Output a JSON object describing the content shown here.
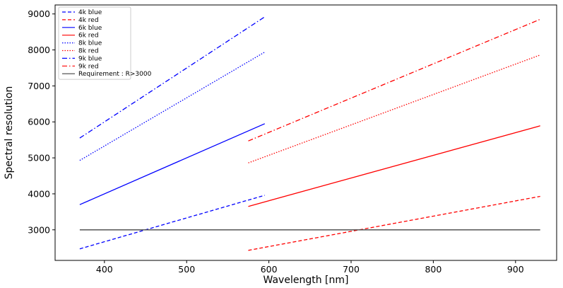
{
  "chart_data": {
    "type": "line",
    "title": "",
    "xlabel": "Wavelength [nm]",
    "ylabel": "Spectral resolution",
    "xlim": [
      340,
      950
    ],
    "ylim": [
      2150,
      9250
    ],
    "xticks": [
      400,
      500,
      600,
      700,
      800,
      900
    ],
    "yticks": [
      3000,
      4000,
      5000,
      6000,
      7000,
      8000,
      9000
    ],
    "grid": false,
    "legend_position": "top-left",
    "series": [
      {
        "name": "4k blue",
        "color": "#0000ff",
        "dash": "dashed",
        "x": [
          370,
          595
        ],
        "y": [
          2470,
          3960
        ]
      },
      {
        "name": "4k red",
        "color": "#ff0000",
        "dash": "dashed",
        "x": [
          575,
          930
        ],
        "y": [
          2430,
          3930
        ]
      },
      {
        "name": "6k blue",
        "color": "#0000ff",
        "dash": "solid",
        "x": [
          370,
          595
        ],
        "y": [
          3700,
          5950
        ]
      },
      {
        "name": "6k red",
        "color": "#ff0000",
        "dash": "solid",
        "x": [
          575,
          930
        ],
        "y": [
          3650,
          5890
        ]
      },
      {
        "name": "8k blue",
        "color": "#0000ff",
        "dash": "dotted",
        "x": [
          370,
          595
        ],
        "y": [
          4930,
          7940
        ]
      },
      {
        "name": "8k red",
        "color": "#ff0000",
        "dash": "dotted",
        "x": [
          575,
          930
        ],
        "y": [
          4860,
          7860
        ]
      },
      {
        "name": "9k blue",
        "color": "#0000ff",
        "dash": "dashdot",
        "x": [
          370,
          595
        ],
        "y": [
          5550,
          8920
        ]
      },
      {
        "name": "9k red",
        "color": "#ff0000",
        "dash": "dashdot",
        "x": [
          575,
          930
        ],
        "y": [
          5470,
          8850
        ]
      },
      {
        "name": "Requirement : R>3000",
        "color": "#444444",
        "dash": "solid",
        "x": [
          370,
          930
        ],
        "y": [
          3000,
          3000
        ]
      }
    ]
  }
}
